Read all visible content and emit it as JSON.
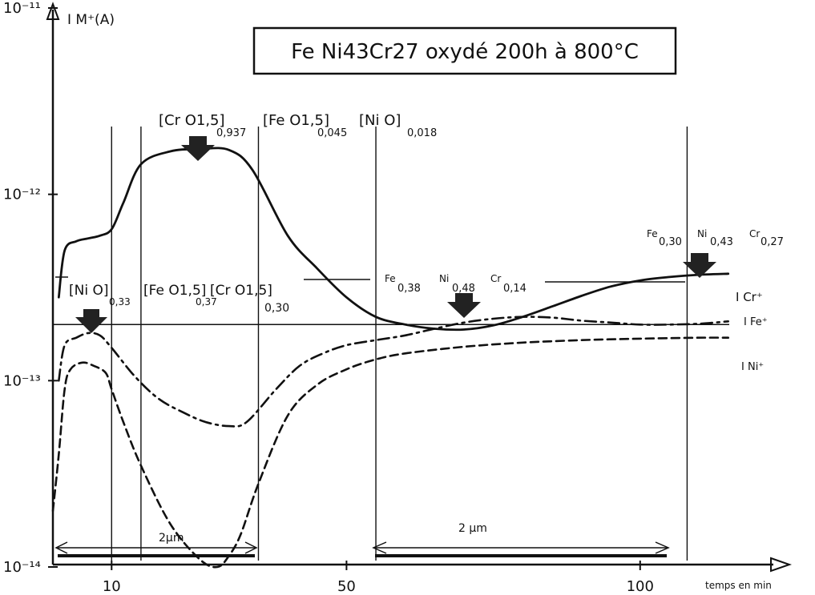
{
  "chart_data": {
    "type": "line",
    "title": "Fe Ni43Cr27 oxydé 200h à 800°C",
    "ylabel": "I M⁺(A)",
    "xlabel": "temps en min",
    "y_scale": "log",
    "ylim": [
      1e-14,
      1e-11
    ],
    "y_tick_labels": [
      "10⁻¹⁴",
      "10⁻¹³",
      "10⁻¹²",
      "10⁻¹¹"
    ],
    "y_ticks": [
      1e-14,
      1e-13,
      1e-12,
      1e-11
    ],
    "x_tick_labels": [
      "10",
      "50",
      "100"
    ],
    "x_ticks": [
      10,
      50,
      100
    ],
    "xlim": [
      0,
      122
    ],
    "grid": false,
    "vertical_markers": [
      10,
      15,
      35,
      55,
      108
    ],
    "series": [
      {
        "name": "I Cr⁺",
        "style": "solid",
        "x": [
          1,
          2,
          4,
          6,
          8,
          10,
          12,
          15,
          20,
          25,
          30,
          34,
          40,
          45,
          50,
          55,
          60,
          65,
          70,
          75,
          80,
          85,
          90,
          95,
          100,
          105,
          110,
          115
        ],
        "y": [
          2.8e-13,
          5e-13,
          5.6e-13,
          5.8e-13,
          6e-13,
          6.5e-13,
          9e-13,
          1.45e-12,
          1.7e-12,
          1.75e-12,
          1.73e-12,
          1.35e-12,
          6e-13,
          4e-13,
          2.8e-13,
          2.2e-13,
          2e-13,
          1.9e-13,
          1.88e-13,
          1.98e-13,
          2.2e-13,
          2.5e-13,
          2.85e-13,
          3.2e-13,
          3.45e-13,
          3.6e-13,
          3.7e-13,
          3.75e-13
        ]
      },
      {
        "name": "I Fe⁺",
        "style": "dash-dot",
        "x": [
          1,
          2,
          4,
          6,
          8,
          10,
          14,
          18,
          22,
          26,
          30,
          33,
          38,
          42,
          46,
          50,
          55,
          60,
          65,
          70,
          75,
          80,
          85,
          90,
          95,
          100,
          105,
          110,
          115
        ],
        "y": [
          1e-13,
          1.55e-13,
          1.7e-13,
          1.8e-13,
          1.75e-13,
          1.5e-13,
          1.05e-13,
          8e-14,
          6.8e-14,
          6e-14,
          5.7e-14,
          6e-14,
          9e-14,
          1.2e-13,
          1.4e-13,
          1.55e-13,
          1.65e-13,
          1.75e-13,
          1.9e-13,
          2.05e-13,
          2.15e-13,
          2.2e-13,
          2.18e-13,
          2.1e-13,
          2.05e-13,
          2e-13,
          2e-13,
          2.02e-13,
          2.08e-13
        ]
      },
      {
        "name": "I Ni⁺",
        "style": "dashed",
        "x": [
          0,
          1,
          2,
          3,
          5,
          7,
          9,
          10,
          12,
          15,
          20,
          25,
          28,
          30,
          32,
          35,
          40,
          45,
          50,
          55,
          60,
          70,
          80,
          90,
          100,
          110,
          115
        ],
        "y": [
          2e-14,
          4e-14,
          9e-14,
          1.15e-13,
          1.25e-13,
          1.2e-13,
          1.1e-13,
          9e-14,
          6e-14,
          3.5e-14,
          1.7e-14,
          1.1e-14,
          1e-14,
          1.15e-14,
          1.5e-14,
          2.8e-14,
          6.5e-14,
          9.5e-14,
          1.15e-13,
          1.3e-13,
          1.4e-13,
          1.52e-13,
          1.6e-13,
          1.65e-13,
          1.68e-13,
          1.7e-13,
          1.7e-13
        ]
      }
    ],
    "reference_line": {
      "y": 2e-13
    },
    "annotations": {
      "upper": [
        {
          "base": "[Cr O1,5]",
          "sub": "0,937",
          "x": 13
        },
        {
          "base": "[Fe O1,5]",
          "sub": "0,045",
          "x": 37
        },
        {
          "base": "[Ni O]",
          "sub": "0,018",
          "x": 57
        }
      ],
      "lower": [
        {
          "base": "[Ni O]",
          "sub": "0,33",
          "x": 2
        },
        {
          "base": "[Fe O1,5]",
          "sub": "0,37",
          "x": 13
        },
        {
          "base": "[Cr O1,5]",
          "sub": "0,30",
          "x": 25
        }
      ],
      "mid_composition": [
        {
          "el": "Fe",
          "sub": "0,38"
        },
        {
          "el": "Ni",
          "sub": "0,48"
        },
        {
          "el": "Cr",
          "sub": "0,14"
        }
      ],
      "right_composition": [
        {
          "el": "Fe",
          "sub": "0,30"
        },
        {
          "el": "Ni",
          "sub": "0,43"
        },
        {
          "el": "Cr",
          "sub": "0,27"
        }
      ],
      "depth_labels": [
        "2µm",
        "2 µm"
      ]
    }
  }
}
